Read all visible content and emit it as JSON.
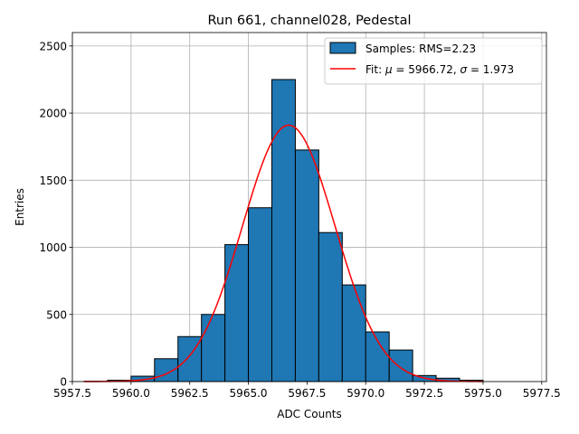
{
  "chart_data": {
    "type": "bar",
    "title": "Run 661, channel028, Pedestal",
    "xlabel": "ADC Counts",
    "ylabel": "Entries",
    "xlim": [
      5957.5,
      5977.7
    ],
    "ylim": [
      0,
      2600
    ],
    "grid": true,
    "legend_position": "top-right",
    "xticks": [
      "5957.5",
      "5960.0",
      "5962.5",
      "5965.0",
      "5967.5",
      "5970.0",
      "5972.5",
      "5975.0",
      "5977.5"
    ],
    "xtick_values": [
      5957.5,
      5960.0,
      5962.5,
      5965.0,
      5967.5,
      5970.0,
      5972.5,
      5975.0,
      5977.5
    ],
    "yticks": [
      "0",
      "500",
      "1000",
      "1500",
      "2000",
      "2500"
    ],
    "ytick_values": [
      0,
      500,
      1000,
      1500,
      2000,
      2500
    ],
    "histogram": {
      "name": "Samples: RMS=2.23",
      "bin_edges": [
        5958,
        5959,
        5960,
        5961,
        5962,
        5963,
        5964,
        5965,
        5966,
        5967,
        5968,
        5969,
        5970,
        5971,
        5972,
        5973,
        5974,
        5975,
        5976,
        5977
      ],
      "counts": [
        2,
        10,
        40,
        170,
        335,
        500,
        1020,
        1295,
        2250,
        1725,
        1110,
        720,
        370,
        235,
        45,
        25,
        10,
        0,
        0
      ],
      "color": "#1f77b4",
      "edgecolor": "#000000"
    },
    "fit": {
      "name": "Fit: μ = 5966.72, σ = 1.973",
      "label_parts": [
        "Fit: ",
        "μ",
        " = 5966.72, ",
        "σ",
        " = 1.973"
      ],
      "mu": 5966.72,
      "sigma": 1.973,
      "amplitude": 1910,
      "x_range": [
        5958,
        5975
      ],
      "color": "#ff0000"
    }
  }
}
